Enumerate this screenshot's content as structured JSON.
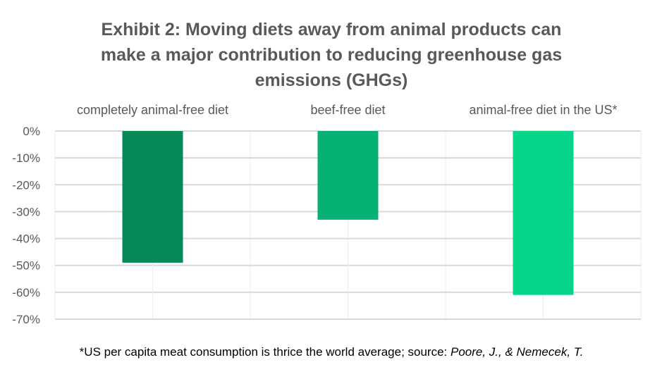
{
  "chart_data": {
    "type": "bar",
    "title_lines": [
      "Exhibit 2: Moving diets away from animal products can",
      "make a major contribution to reducing greenhouse gas",
      "emissions (GHGs)"
    ],
    "categories": [
      "completely animal-free diet",
      "beef-free diet",
      "animal-free diet in the US*"
    ],
    "values": [
      -49,
      -33,
      -61
    ],
    "colors": [
      "#068857",
      "#07b173",
      "#06d488"
    ],
    "ylim": [
      -70,
      0
    ],
    "yticks": [
      "0%",
      "-10%",
      "-20%",
      "-30%",
      "-40%",
      "-50%",
      "-60%",
      "-70%"
    ],
    "grid": true,
    "xlabel": "",
    "ylabel": "",
    "footnote": {
      "plain": "*US per capita meat consumption is thrice the world average; source: ",
      "italic": "Poore, J., & Nemecek, T."
    }
  }
}
